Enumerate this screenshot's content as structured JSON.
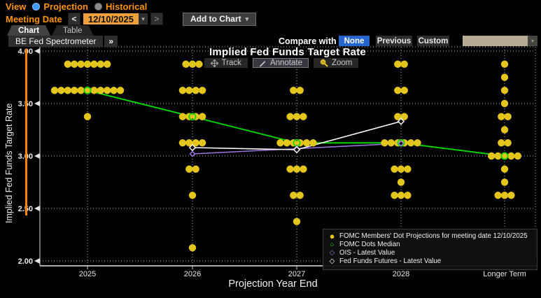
{
  "controls": {
    "view_label": "View",
    "view_options": [
      {
        "label": "Projection",
        "selected": true
      },
      {
        "label": "Historical",
        "selected": false
      }
    ],
    "meeting_date_label": "Meeting Date",
    "meeting_date_value": "12/10/2025",
    "prev_arrow": "<",
    "next_arrow": ">",
    "dropdown_caret": "▾",
    "add_to_chart_label": "Add to Chart",
    "tabs": [
      {
        "label": "Chart",
        "active": true
      },
      {
        "label": "Table",
        "active": false
      }
    ],
    "spectrometer_label": "BE Fed Spectrometer",
    "spectrometer_chevrons": "»",
    "compare_label": "Compare with",
    "compare_options": [
      {
        "label": "None",
        "selected": true
      },
      {
        "label": "Previous",
        "selected": false
      },
      {
        "label": "Custom",
        "selected": false
      }
    ]
  },
  "chart_tools": {
    "track": "Track",
    "annotate": "Annotate",
    "zoom": "Zoom"
  },
  "colors": {
    "dots": "#e4c51b",
    "median": "#00d800",
    "ois": "#9a76dd",
    "fed_funds_futures": "#ffffff",
    "accent_orange": "#ff8400",
    "selected_blue": "#2565cd",
    "date_field_orange": "#eda03b"
  },
  "chart_data": {
    "type": "scatter",
    "title": "Implied Fed Funds Target Rate",
    "xlabel": "Projection Year End",
    "ylabel": "Implied Fed Funds Target Rate",
    "ylim": [
      2.0,
      4.0
    ],
    "yticks": [
      4.0,
      3.5,
      3.0,
      2.5,
      2.0
    ],
    "categories": [
      "2025",
      "2026",
      "2027",
      "2028",
      "Longer Term"
    ],
    "grid": "dotted",
    "legend_position": "bottom-right",
    "series": [
      {
        "name": "FOMC Members' Dot Projections for meeting date 12/10/2025",
        "type": "dot_counts",
        "color": "#e4c51b",
        "points": [
          {
            "category": "2025",
            "rate": 3.875,
            "count": 7
          },
          {
            "category": "2025",
            "rate": 3.625,
            "count": 11
          },
          {
            "category": "2025",
            "rate": 3.375,
            "count": 1
          },
          {
            "category": "2026",
            "rate": 3.875,
            "count": 3
          },
          {
            "category": "2026",
            "rate": 3.625,
            "count": 4
          },
          {
            "category": "2026",
            "rate": 3.375,
            "count": 4
          },
          {
            "category": "2026",
            "rate": 3.125,
            "count": 4
          },
          {
            "category": "2026",
            "rate": 2.875,
            "count": 2
          },
          {
            "category": "2026",
            "rate": 2.625,
            "count": 1
          },
          {
            "category": "2026",
            "rate": 2.125,
            "count": 1
          },
          {
            "category": "2027",
            "rate": 3.625,
            "count": 2
          },
          {
            "category": "2027",
            "rate": 3.375,
            "count": 3
          },
          {
            "category": "2027",
            "rate": 3.125,
            "count": 6
          },
          {
            "category": "2027",
            "rate": 2.875,
            "count": 3
          },
          {
            "category": "2027",
            "rate": 2.625,
            "count": 2
          },
          {
            "category": "2027",
            "rate": 2.375,
            "count": 1
          },
          {
            "category": "2028",
            "rate": 3.875,
            "count": 2
          },
          {
            "category": "2028",
            "rate": 3.625,
            "count": 2
          },
          {
            "category": "2028",
            "rate": 3.375,
            "count": 2
          },
          {
            "category": "2028",
            "rate": 3.125,
            "count": 6
          },
          {
            "category": "2028",
            "rate": 2.875,
            "count": 3
          },
          {
            "category": "2028",
            "rate": 2.75,
            "count": 1
          },
          {
            "category": "2028",
            "rate": 2.625,
            "count": 3
          },
          {
            "category": "Longer Term",
            "rate": 3.875,
            "count": 1
          },
          {
            "category": "Longer Term",
            "rate": 3.75,
            "count": 1
          },
          {
            "category": "Longer Term",
            "rate": 3.625,
            "count": 1
          },
          {
            "category": "Longer Term",
            "rate": 3.5,
            "count": 1
          },
          {
            "category": "Longer Term",
            "rate": 3.375,
            "count": 2
          },
          {
            "category": "Longer Term",
            "rate": 3.25,
            "count": 1
          },
          {
            "category": "Longer Term",
            "rate": 3.125,
            "count": 2
          },
          {
            "category": "Longer Term",
            "rate": 3.0,
            "count": 5
          },
          {
            "category": "Longer Term",
            "rate": 2.875,
            "count": 1
          },
          {
            "category": "Longer Term",
            "rate": 2.75,
            "count": 1
          },
          {
            "category": "Longer Term",
            "rate": 2.625,
            "count": 3
          }
        ]
      },
      {
        "name": "FOMC Dots Median",
        "type": "line_open_circle",
        "color": "#00d800",
        "categories": [
          "2025",
          "2026",
          "2027",
          "2028",
          "Longer Term"
        ],
        "values": [
          3.625,
          3.375,
          3.125,
          3.125,
          3.0
        ]
      },
      {
        "name": "OIS - Latest Value",
        "type": "line_diamond",
        "color": "#9a76dd",
        "categories": [
          "2026",
          "2027",
          "2028"
        ],
        "values": [
          3.02,
          3.07,
          3.12
        ]
      },
      {
        "name": "Fed Funds Futures - Latest Value",
        "type": "line_diamond",
        "color": "#ffffff",
        "categories": [
          "2026",
          "2027",
          "2028"
        ],
        "values": [
          3.08,
          3.06,
          3.33
        ]
      }
    ]
  },
  "legend": {
    "items": [
      {
        "marker": "filled-circle",
        "color": "#e4c51b",
        "label": "FOMC Members' Dot Projections for meeting date 12/10/2025"
      },
      {
        "marker": "open-circle",
        "color": "#00d800",
        "label": "FOMC Dots Median"
      },
      {
        "marker": "open-diamond",
        "color": "#9a76dd",
        "label": "OIS - Latest Value"
      },
      {
        "marker": "open-diamond",
        "color": "#ffffff",
        "label": "Fed Funds Futures - Latest Value"
      }
    ]
  }
}
